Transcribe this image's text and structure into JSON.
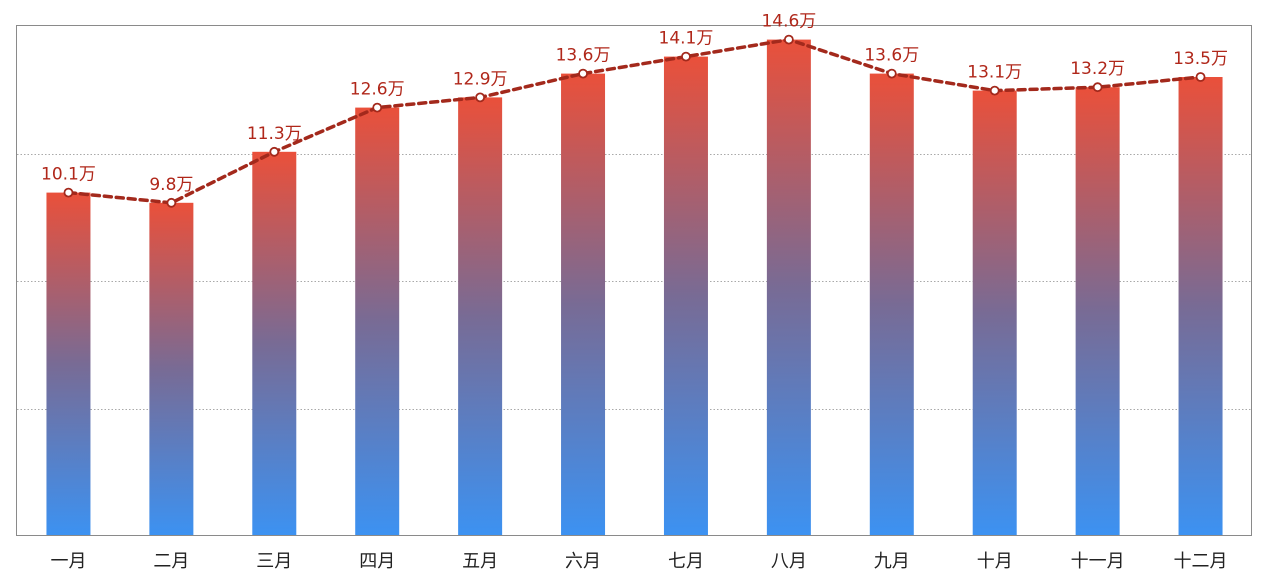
{
  "chart_data": {
    "type": "bar",
    "title": "",
    "xlabel": "",
    "ylabel": "",
    "categories": [
      "一月",
      "二月",
      "三月",
      "四月",
      "五月",
      "六月",
      "七月",
      "八月",
      "九月",
      "十月",
      "十一月",
      "十二月"
    ],
    "values": [
      10.1,
      9.8,
      11.3,
      12.6,
      12.9,
      13.6,
      14.1,
      14.6,
      13.6,
      13.1,
      13.2,
      13.5
    ],
    "data_labels": [
      "10.1万",
      "9.8万",
      "11.3万",
      "12.6万",
      "12.9万",
      "13.6万",
      "14.1万",
      "14.6万",
      "13.6万",
      "13.1万",
      "13.2万",
      "13.5万"
    ],
    "unit": "万",
    "ylim": [
      0,
      15
    ],
    "gridlines": [
      3.75,
      7.5,
      11.25
    ],
    "grid": true,
    "y_tick_labels_visible": false,
    "legend": "none",
    "overlay_line": {
      "type": "line",
      "style": "dashed",
      "markers": "open-circle",
      "values": [
        10.1,
        9.8,
        11.3,
        12.6,
        12.9,
        13.6,
        14.1,
        14.6,
        13.6,
        13.1,
        13.2,
        13.5
      ]
    },
    "colors": {
      "bar_gradient_top": "#ea503a",
      "bar_gradient_mid": "#786b95",
      "bar_gradient_bottom": "#3c92f2",
      "line": "#a3291c",
      "data_label": "#b0271a",
      "grid": "#a9a9a9",
      "frame": "#8a8a8a",
      "tick_label": "#222222"
    }
  }
}
